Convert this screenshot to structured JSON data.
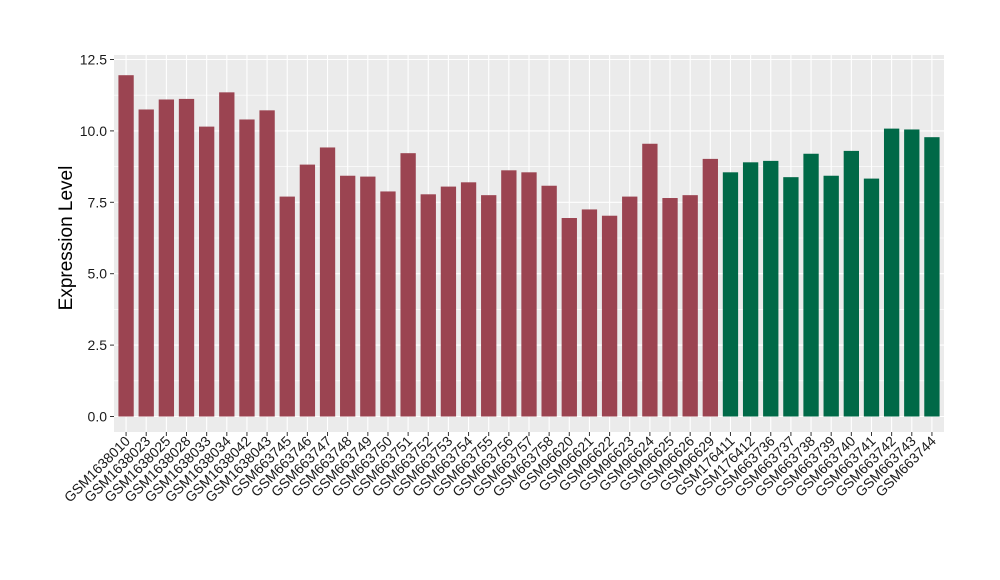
{
  "chart_data": {
    "type": "bar",
    "title": "",
    "xlabel": "",
    "ylabel": "Expression Level",
    "ylim": [
      0,
      12.5
    ],
    "yticks": [
      "0.0",
      "2.5",
      "5.0",
      "7.5",
      "10.0",
      "12.5"
    ],
    "grid": true,
    "legend": "none",
    "colors": {
      "group_a": "#9b4451",
      "group_b": "#006947",
      "panel_background": "#ebebeb",
      "grid": "#ffffff"
    },
    "categories": [
      "GSM1638010",
      "GSM1638023",
      "GSM1638025",
      "GSM1638028",
      "GSM1638033",
      "GSM1638034",
      "GSM1638042",
      "GSM1638043",
      "GSM663745",
      "GSM663746",
      "GSM663747",
      "GSM663748",
      "GSM663749",
      "GSM663750",
      "GSM663751",
      "GSM663752",
      "GSM663753",
      "GSM663754",
      "GSM663755",
      "GSM663756",
      "GSM663757",
      "GSM663758",
      "GSM96620",
      "GSM96621",
      "GSM96622",
      "GSM96623",
      "GSM96624",
      "GSM96625",
      "GSM96626",
      "GSM96629",
      "GSM176411",
      "GSM176412",
      "GSM663736",
      "GSM663737",
      "GSM663738",
      "GSM663739",
      "GSM663740",
      "GSM663741",
      "GSM663742",
      "GSM663743",
      "GSM663744"
    ],
    "values": [
      11.95,
      10.75,
      11.1,
      11.12,
      10.15,
      11.35,
      10.4,
      10.72,
      7.7,
      8.82,
      9.42,
      8.43,
      8.4,
      7.88,
      9.22,
      7.78,
      8.05,
      8.2,
      7.75,
      8.62,
      8.55,
      8.08,
      6.95,
      7.25,
      7.03,
      7.7,
      9.55,
      7.65,
      7.75,
      9.02,
      8.55,
      8.9,
      8.95,
      8.38,
      9.2,
      8.43,
      9.3,
      8.33,
      10.08,
      10.05,
      9.78
    ],
    "groups": [
      "a",
      "a",
      "a",
      "a",
      "a",
      "a",
      "a",
      "a",
      "a",
      "a",
      "a",
      "a",
      "a",
      "a",
      "a",
      "a",
      "a",
      "a",
      "a",
      "a",
      "a",
      "a",
      "a",
      "a",
      "a",
      "a",
      "a",
      "a",
      "a",
      "a",
      "b",
      "b",
      "b",
      "b",
      "b",
      "b",
      "b",
      "b",
      "b",
      "b",
      "b"
    ]
  }
}
